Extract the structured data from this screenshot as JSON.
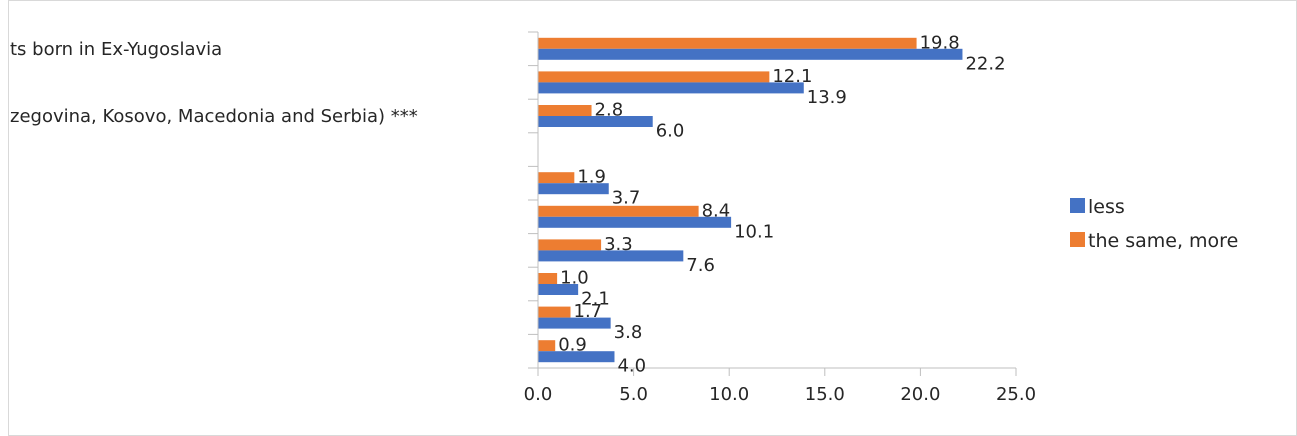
{
  "chart_data": {
    "type": "bar",
    "orientation": "horizontal",
    "categories": [
      "ts born in Ex-Yugoslavia",
      "",
      "zegovina, Kosovo, Macedonia and Serbia) ***",
      "",
      "",
      "",
      "",
      "",
      "",
      ""
    ],
    "series": [
      {
        "name": "less",
        "color": "#4472C4",
        "values": [
          22.2,
          13.9,
          6.0,
          null,
          3.7,
          10.1,
          7.6,
          2.1,
          3.8,
          4.0
        ],
        "labels": [
          "22.2",
          "13.9",
          "6.0",
          "",
          "3.7",
          "10.1",
          "7.6",
          "2.1",
          "3.8",
          "4.0"
        ]
      },
      {
        "name": "the same, more",
        "color": "#ED7D31",
        "values": [
          19.8,
          12.1,
          2.8,
          null,
          1.9,
          8.4,
          3.3,
          1.0,
          1.7,
          0.9
        ],
        "labels": [
          "19.8",
          "12.1",
          "2.8",
          "",
          "1.9",
          "8.4",
          "3.3",
          "1.0",
          "1.7",
          "0.9"
        ]
      }
    ],
    "xlim": [
      0,
      25
    ],
    "xticks": [
      "0.0",
      "5.0",
      "10.0",
      "15.0",
      "20.0",
      "25.0"
    ],
    "grid": false,
    "legend_position": "right"
  }
}
